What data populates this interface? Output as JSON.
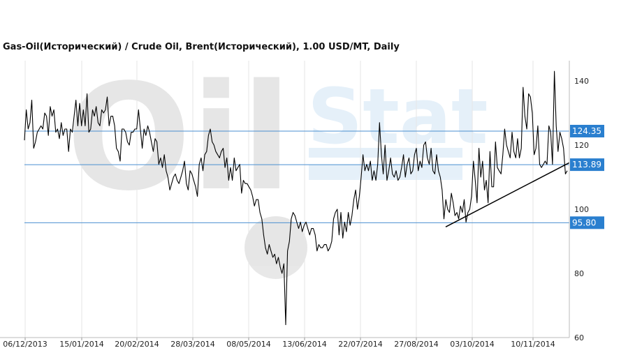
{
  "chart_data": {
    "type": "line",
    "title": "Gas-Oil(Исторический) / Crude Oil, Brent(Исторический), 1.00 USD/MT, Daily",
    "watermark": "Oil Stat",
    "x_tick_labels": [
      "06/12/2013",
      "15/01/2014",
      "20/02/2014",
      "28/03/2014",
      "08/05/2014",
      "13/06/2014",
      "22/07/2014",
      "27/08/2014",
      "03/10/2014",
      "10/11/2014"
    ],
    "y_tick_labels": [
      "60",
      "80",
      "100",
      "120",
      "140"
    ],
    "ylim": [
      60,
      145
    ],
    "grid": "vertical",
    "horizontal_levels": [
      {
        "label": "124.35",
        "value": 124.35
      },
      {
        "label": "113.89",
        "value": 113.89
      },
      {
        "label": "95.80",
        "value": 95.8
      }
    ],
    "trendline": {
      "start": {
        "x": 139,
        "y": 94.5
      },
      "end": {
        "x": 160,
        "y": 114.5
      }
    },
    "series": [
      {
        "values": [
          121.5,
          131,
          125,
          127,
          134,
          119,
          121,
          124,
          125,
          126,
          125,
          130,
          129,
          123,
          132,
          129,
          131,
          124,
          125,
          122,
          127,
          123,
          125,
          125,
          118,
          125,
          124,
          129,
          134,
          126,
          133,
          126,
          131,
          126,
          136,
          124,
          125,
          131,
          129,
          132,
          127,
          126,
          131,
          130,
          131,
          135,
          126,
          129,
          129,
          126,
          119,
          118,
          115,
          125,
          125,
          124,
          121,
          120,
          124,
          124,
          125,
          125,
          131,
          125,
          119,
          125,
          123,
          126,
          124,
          121,
          118,
          122,
          121,
          114,
          116,
          113,
          117,
          112,
          110,
          106,
          108,
          110,
          111,
          109,
          108,
          110,
          112,
          115,
          108,
          106,
          112,
          111,
          109,
          107,
          104,
          114,
          116,
          112,
          117,
          118,
          123,
          125,
          121,
          120,
          118,
          117,
          116,
          118,
          119,
          113,
          116,
          109,
          113,
          109,
          116,
          112,
          113,
          114,
          105,
          109,
          108,
          108,
          107,
          106,
          104,
          101,
          103,
          103,
          99,
          97,
          92,
          88,
          86,
          89,
          87,
          85,
          86,
          83,
          85,
          82,
          80,
          83,
          64,
          87,
          90,
          97,
          99,
          98,
          96,
          94,
          96,
          93,
          95,
          96,
          94,
          92,
          94,
          94,
          92,
          87,
          89,
          88,
          88,
          89,
          89,
          87,
          88,
          90,
          97,
          99,
          100,
          92,
          99,
          91,
          96,
          93,
          99,
          95,
          98,
          103,
          106,
          100,
          104,
          110,
          117,
          112,
          114,
          112,
          115,
          109,
          112,
          109,
          114,
          127,
          117,
          111,
          120,
          109,
          112,
          116,
          111,
          110,
          112,
          109,
          110,
          113,
          117,
          110,
          114,
          116,
          111,
          112,
          117,
          119,
          112,
          115,
          113,
          120,
          121,
          116,
          114,
          119,
          112,
          111,
          117,
          112,
          110,
          106,
          97,
          103,
          100,
          99,
          105,
          102,
          98,
          99,
          97,
          101,
          99,
          103,
          96,
          99,
          100,
          104,
          115,
          109,
          102,
          119,
          110,
          115,
          106,
          109,
          102,
          118,
          107,
          107,
          121,
          113,
          112,
          111,
          117,
          125,
          120,
          118,
          116,
          124,
          118,
          116,
          122,
          116,
          119,
          138,
          129,
          125,
          136,
          135,
          130,
          117,
          119,
          126,
          114,
          113,
          114,
          115,
          114,
          126,
          124,
          114,
          143,
          126,
          118,
          124,
          122,
          119,
          111,
          112
        ]
      }
    ]
  }
}
